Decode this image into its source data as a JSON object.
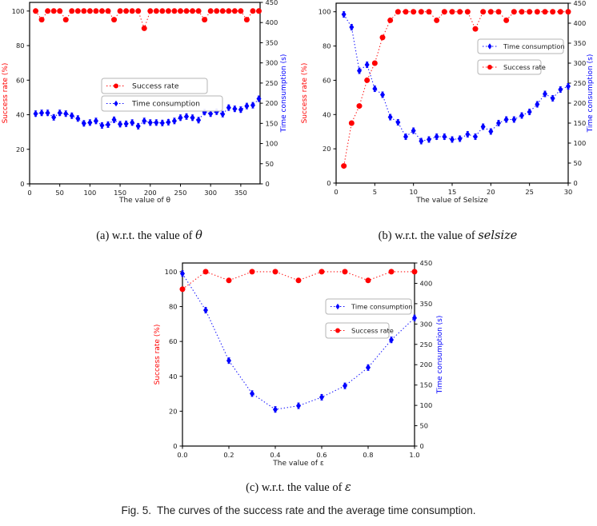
{
  "figure": {
    "captions": {
      "a": {
        "prefix": "(a) w.r.t. the value of ",
        "term": "θ"
      },
      "b": {
        "prefix": "(b) w.r.t. the value of ",
        "term": "selsize"
      },
      "c": {
        "prefix": "(c) w.r.t. the value of ",
        "term": "ε"
      }
    },
    "fig_caption": {
      "label": "Fig. 5.",
      "text": "The curves of the success rate and the average time consumption."
    }
  },
  "colors": {
    "success_rate": "#ff0000",
    "time_consumption": "#0000ff",
    "axis": "#000000",
    "tick_text": "#1a1a1a",
    "legend_border": "#b5b5b5"
  },
  "chart_data": [
    {
      "id": "a",
      "type": "line",
      "xlabel": "The value of θ",
      "ylabel_left": "Success rate (%)",
      "ylabel_right": "Time consumption (s)",
      "xlim": [
        0,
        382
      ],
      "xticks": [
        0,
        50,
        100,
        150,
        200,
        250,
        300,
        350
      ],
      "ylim_left": [
        0,
        105
      ],
      "yticks_left": [
        0,
        20,
        40,
        60,
        80,
        100
      ],
      "ylim_right": [
        0,
        450
      ],
      "yticks_right": [
        0,
        50,
        100,
        150,
        200,
        250,
        300,
        350,
        400,
        450
      ],
      "grid": false,
      "legend_position": "center-left-inside",
      "legend": [
        {
          "label": "Success rate",
          "series": "success"
        },
        {
          "label": "Time consumption",
          "series": "time"
        }
      ],
      "series": [
        {
          "name": "Success rate",
          "key": "success",
          "axis": "left",
          "marker": "circle",
          "color_key": "success_rate",
          "x": [
            10,
            20,
            30,
            40,
            50,
            60,
            70,
            80,
            90,
            100,
            110,
            120,
            130,
            140,
            150,
            160,
            170,
            180,
            190,
            200,
            210,
            220,
            230,
            240,
            250,
            260,
            270,
            280,
            290,
            300,
            310,
            320,
            330,
            340,
            350,
            360,
            370,
            380
          ],
          "y": [
            100,
            95,
            100,
            100,
            100,
            95,
            100,
            100,
            100,
            100,
            100,
            100,
            100,
            95,
            100,
            100,
            100,
            100,
            90,
            100,
            100,
            100,
            100,
            100,
            100,
            100,
            100,
            100,
            95,
            100,
            100,
            100,
            100,
            100,
            100,
            95,
            100,
            100
          ]
        },
        {
          "name": "Time consumption",
          "key": "time",
          "axis": "right",
          "marker": "diamond",
          "color_key": "time_consumption",
          "yerr": 7,
          "x": [
            10,
            20,
            30,
            40,
            50,
            60,
            70,
            80,
            90,
            100,
            110,
            120,
            130,
            140,
            150,
            160,
            170,
            180,
            190,
            200,
            210,
            220,
            230,
            240,
            250,
            260,
            270,
            280,
            290,
            300,
            310,
            320,
            330,
            340,
            350,
            360,
            370,
            380
          ],
          "y": [
            174,
            176,
            176,
            165,
            176,
            174,
            169,
            162,
            150,
            152,
            156,
            145,
            147,
            159,
            148,
            149,
            152,
            143,
            156,
            152,
            152,
            151,
            153,
            156,
            164,
            167,
            164,
            158,
            178,
            174,
            179,
            173,
            189,
            186,
            184,
            193,
            195,
            211
          ]
        }
      ]
    },
    {
      "id": "b",
      "type": "line",
      "xlabel": "The value of Selsize",
      "ylabel_left": "Success rate (%)",
      "ylabel_right": "Time consumption (s)",
      "xlim": [
        0,
        30
      ],
      "xticks": [
        0,
        5,
        10,
        15,
        20,
        25,
        30
      ],
      "ylim_left": [
        0,
        105
      ],
      "yticks_left": [
        0,
        20,
        40,
        60,
        80,
        100
      ],
      "ylim_right": [
        0,
        450
      ],
      "yticks_right": [
        0,
        50,
        100,
        150,
        200,
        250,
        300,
        350,
        400,
        450
      ],
      "grid": false,
      "legend_position": "upper-right-inside",
      "legend": [
        {
          "label": "Time consumption",
          "series": "time"
        },
        {
          "label": "Success rate",
          "series": "success"
        }
      ],
      "series": [
        {
          "name": "Success rate",
          "key": "success",
          "axis": "left",
          "marker": "circle",
          "color_key": "success_rate",
          "x": [
            1,
            2,
            3,
            4,
            5,
            6,
            7,
            8,
            9,
            10,
            11,
            12,
            13,
            14,
            15,
            16,
            17,
            18,
            19,
            20,
            21,
            22,
            23,
            24,
            25,
            26,
            27,
            28,
            29,
            30
          ],
          "y": [
            10,
            35,
            45,
            60,
            70,
            85,
            95,
            100,
            100,
            100,
            100,
            100,
            95,
            100,
            100,
            100,
            100,
            90,
            100,
            100,
            100,
            95,
            100,
            100,
            100,
            100,
            100,
            100,
            100,
            100
          ]
        },
        {
          "name": "Time consumption",
          "key": "time",
          "axis": "right",
          "marker": "diamond",
          "color_key": "time_consumption",
          "yerr": 7,
          "x": [
            1,
            2,
            3,
            4,
            5,
            6,
            7,
            8,
            9,
            10,
            11,
            12,
            13,
            14,
            15,
            16,
            17,
            18,
            19,
            20,
            21,
            22,
            23,
            24,
            25,
            26,
            27,
            28,
            29,
            30
          ],
          "y": [
            422,
            390,
            281,
            296,
            236,
            221,
            165,
            152,
            116,
            131,
            105,
            109,
            116,
            116,
            109,
            111,
            122,
            116,
            141,
            129,
            150,
            159,
            159,
            169,
            178,
            197,
            223,
            212,
            234,
            242
          ]
        }
      ]
    },
    {
      "id": "c",
      "type": "line",
      "xlabel": "The value of ε",
      "ylabel_left": "Success rate (%)",
      "ylabel_right": "Time consumption (s)",
      "xlim": [
        0,
        1
      ],
      "xticks": [
        0,
        0.2,
        0.4,
        0.6,
        0.8,
        1.0
      ],
      "xtick_labels": [
        "0.0",
        "0.2",
        "0.4",
        "0.6",
        "0.8",
        "1.0"
      ],
      "ylim_left": [
        0,
        105
      ],
      "yticks_left": [
        0,
        20,
        40,
        60,
        80,
        100
      ],
      "ylim_right": [
        0,
        450
      ],
      "yticks_right": [
        0,
        50,
        100,
        150,
        200,
        250,
        300,
        350,
        400,
        450
      ],
      "grid": false,
      "legend_position": "upper-right-inside",
      "legend": [
        {
          "label": "Time consumption",
          "series": "time"
        },
        {
          "label": "Success rate",
          "series": "success"
        }
      ],
      "series": [
        {
          "name": "Success rate",
          "key": "success",
          "axis": "left",
          "marker": "circle",
          "color_key": "success_rate",
          "x": [
            0,
            0.1,
            0.2,
            0.3,
            0.4,
            0.5,
            0.6,
            0.7,
            0.8,
            0.9,
            1.0
          ],
          "y": [
            90,
            100,
            95,
            100,
            100,
            95,
            100,
            100,
            95,
            100,
            100
          ]
        },
        {
          "name": "Time consumption",
          "key": "time",
          "axis": "right",
          "marker": "diamond",
          "color_key": "time_consumption",
          "yerr": 7,
          "x": [
            0,
            0.1,
            0.2,
            0.3,
            0.4,
            0.5,
            0.6,
            0.7,
            0.8,
            0.9,
            1.0
          ],
          "y": [
            424,
            334,
            210,
            129,
            90,
            99,
            120,
            148,
            193,
            261,
            315
          ]
        }
      ]
    }
  ]
}
